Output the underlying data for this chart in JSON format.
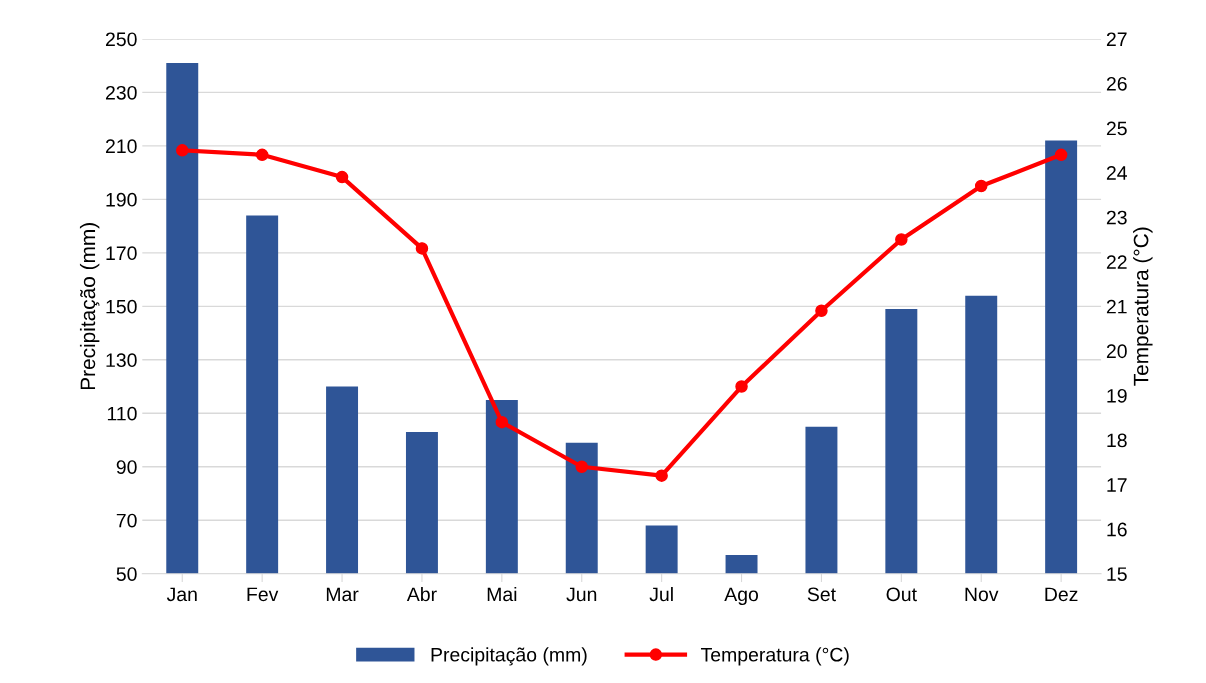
{
  "chart_data": {
    "type": "bar",
    "ylabel": "Precipitação (mm)",
    "y2label": "Temperatura (°C)",
    "categories": [
      "Jan",
      "Fev",
      "Mar",
      "Abr",
      "Mai",
      "Jun",
      "Jul",
      "Ago",
      "Set",
      "Out",
      "Nov",
      "Dez"
    ],
    "series": [
      {
        "name": "Precipitação (mm)",
        "color": "#2f5597",
        "values": [
          241,
          184,
          120,
          103,
          115,
          99,
          68,
          57,
          105,
          149,
          154,
          212
        ]
      },
      {
        "name": "Temperatura (°C)",
        "type": "line",
        "axis": "y2",
        "color": "#ff0000",
        "marker": "circle",
        "values": [
          24.5,
          24.4,
          23.9,
          22.3,
          18.4,
          17.4,
          17.2,
          19.2,
          20.9,
          22.5,
          23.7,
          24.4
        ]
      }
    ],
    "ylim": [
      50,
      250
    ],
    "yticks": [
      50,
      70,
      90,
      110,
      130,
      150,
      170,
      190,
      210,
      230,
      250
    ],
    "y2lim": [
      15,
      27
    ],
    "y2ticks": [
      15,
      16,
      17,
      18,
      19,
      20,
      21,
      22,
      23,
      24,
      25,
      26,
      27
    ],
    "grid": "y",
    "legend": "bottom"
  }
}
